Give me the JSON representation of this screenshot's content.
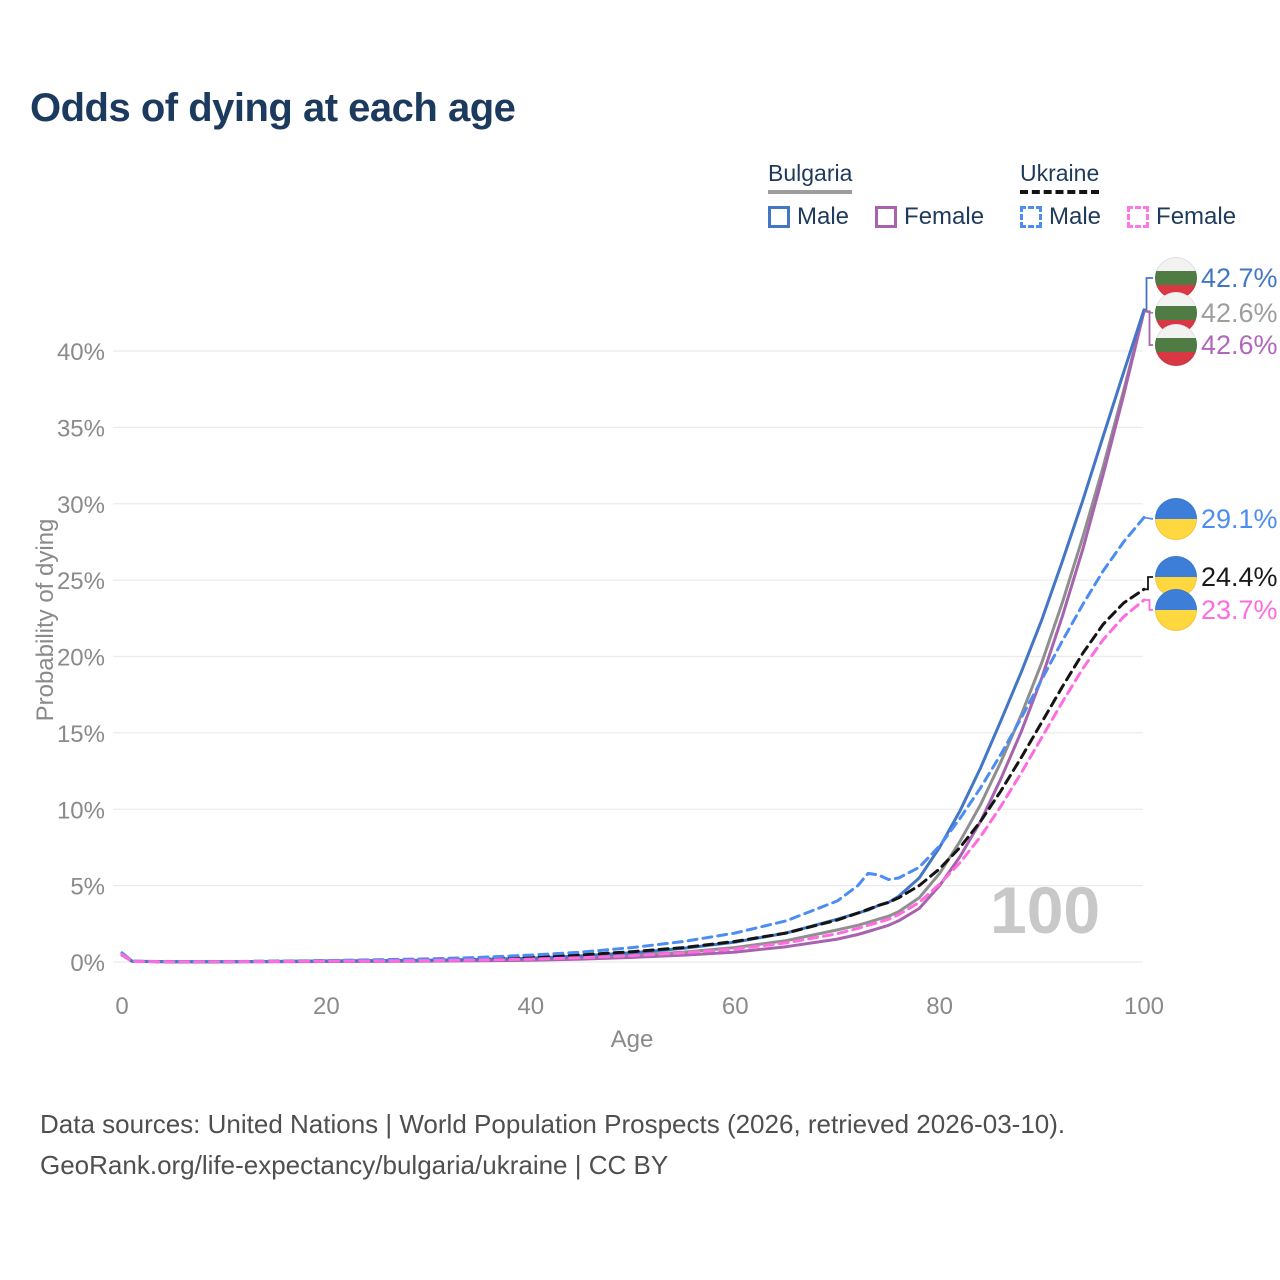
{
  "title": "Odds of dying at each age",
  "legend": {
    "groups": [
      {
        "country": "Bulgaria",
        "underline_style": "solid",
        "underline_color": "#9e9e9e",
        "items": [
          {
            "label": "Male",
            "color": "#4377c6",
            "dashed": false
          },
          {
            "label": "Female",
            "color": "#a763ad",
            "dashed": false
          }
        ]
      },
      {
        "country": "Ukraine",
        "underline_style": "dashed",
        "underline_color": "#141414",
        "items": [
          {
            "label": "Male",
            "color": "#4d8df2",
            "dashed": true
          },
          {
            "label": "Female",
            "color": "#ff77e4",
            "dashed": true
          }
        ]
      }
    ]
  },
  "chart_data": {
    "type": "line",
    "title": "Odds of dying at each age",
    "xlabel": "Age",
    "ylabel": "Probability of dying",
    "xlim": [
      0,
      100
    ],
    "ylim": [
      0,
      44
    ],
    "grid": "horizontal",
    "watermark": "100",
    "x_ticks": [
      {
        "value": 0,
        "label": "0"
      },
      {
        "value": 20,
        "label": "20"
      },
      {
        "value": 40,
        "label": "40"
      },
      {
        "value": 60,
        "label": "60"
      },
      {
        "value": 80,
        "label": "80"
      },
      {
        "value": 100,
        "label": "100"
      }
    ],
    "y_ticks": [
      {
        "value": 0,
        "label": "0%"
      },
      {
        "value": 5,
        "label": "5%"
      },
      {
        "value": 10,
        "label": "10%"
      },
      {
        "value": 15,
        "label": "15%"
      },
      {
        "value": 20,
        "label": "20%"
      },
      {
        "value": 25,
        "label": "25%"
      },
      {
        "value": 30,
        "label": "30%"
      },
      {
        "value": 35,
        "label": "35%"
      },
      {
        "value": 40,
        "label": "40%"
      }
    ],
    "ages": [
      0,
      1,
      5,
      10,
      15,
      20,
      25,
      30,
      35,
      40,
      45,
      50,
      55,
      60,
      65,
      70,
      72,
      73,
      74,
      75,
      76,
      78,
      80,
      82,
      84,
      86,
      88,
      90,
      92,
      94,
      96,
      98,
      100
    ],
    "series": [
      {
        "id": "bulgaria-male",
        "name": "Bulgaria Male",
        "country": "Bulgaria",
        "sex": "Male",
        "color": "#4377c6",
        "dashed": false,
        "end_label": "42.7%",
        "flag": "bulgaria",
        "values": [
          0.55,
          0.05,
          0.02,
          0.02,
          0.04,
          0.07,
          0.09,
          0.12,
          0.17,
          0.25,
          0.4,
          0.6,
          0.9,
          1.3,
          1.9,
          2.8,
          3.2,
          3.4,
          3.7,
          3.9,
          4.3,
          5.5,
          7.5,
          9.9,
          12.7,
          15.8,
          19.0,
          22.4,
          26.2,
          30.2,
          34.4,
          38.6,
          42.7
        ]
      },
      {
        "id": "bulgaria-both",
        "name": "Bulgaria (both sexes)",
        "country": "Bulgaria",
        "sex": "Both",
        "color": "#8f8f8f",
        "dashed": false,
        "end_label": "42.6%",
        "label_color": "#9e9e9e",
        "flag": "bulgaria",
        "values": [
          0.5,
          0.04,
          0.015,
          0.015,
          0.03,
          0.05,
          0.07,
          0.09,
          0.12,
          0.18,
          0.28,
          0.45,
          0.65,
          0.95,
          1.4,
          2.1,
          2.4,
          2.6,
          2.8,
          3.0,
          3.3,
          4.2,
          5.8,
          7.9,
          10.3,
          13.1,
          16.2,
          19.6,
          23.5,
          27.8,
          32.4,
          37.4,
          42.6
        ]
      },
      {
        "id": "bulgaria-female",
        "name": "Bulgaria Female",
        "country": "Bulgaria",
        "sex": "Female",
        "color": "#a763ad",
        "dashed": false,
        "end_label": "42.6%",
        "label_color": "#b167bb",
        "flag": "bulgaria",
        "values": [
          0.45,
          0.04,
          0.01,
          0.01,
          0.02,
          0.03,
          0.04,
          0.06,
          0.08,
          0.12,
          0.19,
          0.3,
          0.45,
          0.65,
          1.0,
          1.5,
          1.8,
          2.0,
          2.2,
          2.4,
          2.7,
          3.5,
          5.0,
          6.9,
          9.2,
          12.0,
          15.1,
          18.6,
          22.6,
          27.0,
          31.9,
          37.1,
          42.6
        ]
      },
      {
        "id": "ukraine-male",
        "name": "Ukraine Male",
        "country": "Ukraine",
        "sex": "Male",
        "color": "#4d8df2",
        "dashed": true,
        "end_label": "29.1%",
        "flag": "ukraine",
        "values": [
          0.6,
          0.05,
          0.025,
          0.025,
          0.06,
          0.1,
          0.15,
          0.2,
          0.3,
          0.45,
          0.65,
          0.95,
          1.35,
          1.9,
          2.7,
          4.0,
          5.0,
          5.8,
          5.7,
          5.4,
          5.5,
          6.2,
          7.6,
          9.4,
          11.4,
          13.6,
          16.0,
          18.5,
          21.0,
          23.4,
          25.6,
          27.5,
          29.1
        ]
      },
      {
        "id": "ukraine-both",
        "name": "Ukraine (both sexes)",
        "country": "Ukraine",
        "sex": "Both",
        "color": "#141414",
        "dashed": true,
        "end_label": "24.4%",
        "label_color": "#1a1a1a",
        "flag": "ukraine",
        "values": [
          0.55,
          0.04,
          0.02,
          0.02,
          0.05,
          0.08,
          0.11,
          0.15,
          0.22,
          0.32,
          0.47,
          0.68,
          0.95,
          1.35,
          1.9,
          2.75,
          3.2,
          3.45,
          3.7,
          3.9,
          4.2,
          5.0,
          6.1,
          7.5,
          9.2,
          11.2,
          13.4,
          15.7,
          18.0,
          20.2,
          22.1,
          23.5,
          24.4
        ]
      },
      {
        "id": "ukraine-female",
        "name": "Ukraine Female",
        "country": "Ukraine",
        "sex": "Female",
        "color": "#ff6ce0",
        "dashed": true,
        "end_label": "23.7%",
        "flag": "ukraine",
        "values": [
          0.5,
          0.035,
          0.015,
          0.015,
          0.035,
          0.05,
          0.07,
          0.09,
          0.13,
          0.19,
          0.28,
          0.42,
          0.6,
          0.85,
          1.25,
          1.85,
          2.2,
          2.4,
          2.6,
          2.8,
          3.1,
          3.9,
          5.1,
          6.5,
          8.2,
          10.2,
          12.4,
          14.7,
          17.0,
          19.2,
          21.1,
          22.6,
          23.7
        ]
      }
    ],
    "flag_colors": {
      "bulgaria": [
        "#f2f2f2",
        "#4e7c43",
        "#d93744"
      ],
      "ukraine": [
        "#3d7ed9",
        "#ffd73e"
      ]
    },
    "grid_color": "#ebebeb"
  },
  "footer": {
    "line1": "Data sources: United Nations | World Population Prospects (2026, retrieved 2026-03-10).",
    "line2": "GeoRank.org/life-expectancy/bulgaria/ukraine | CC BY"
  }
}
